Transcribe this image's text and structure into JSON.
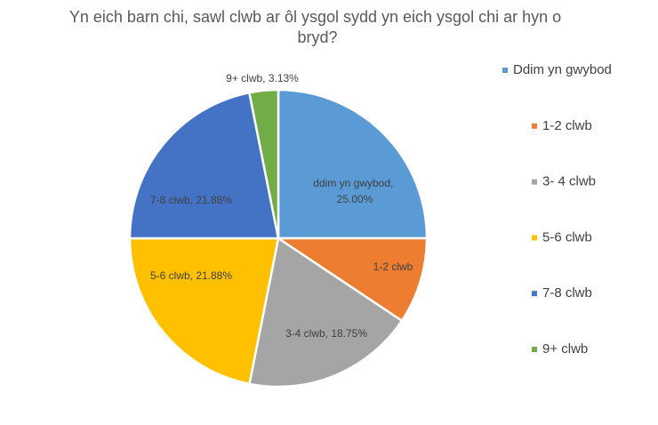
{
  "chart_data": {
    "type": "pie",
    "title": "Yn eich barn chi, sawl clwb ar ôl ysgol sydd yn eich ysgol chi ar hyn o bryd?",
    "categories": [
      "Ddim yn gwybod",
      "1-2 clwb",
      "3- 4 clwb",
      "5-6 clwb",
      "7-8 clwb",
      "9+ clwb"
    ],
    "values": [
      25.0,
      9.38,
      18.75,
      21.88,
      21.88,
      3.13
    ],
    "data_labels": [
      "ddim yn gwybod, 25.00%",
      "1-2 clwb",
      "3-4 clwb, 18.75%",
      "5-6 clwb, 21.88%",
      "7-8 clwb, 21.88%",
      "9+ clwb, 3.13%"
    ],
    "colors": [
      "#5b9bd5",
      "#ed7d31",
      "#a5a5a5",
      "#ffc000",
      "#4472c4",
      "#70ad47"
    ],
    "legend": "right"
  }
}
